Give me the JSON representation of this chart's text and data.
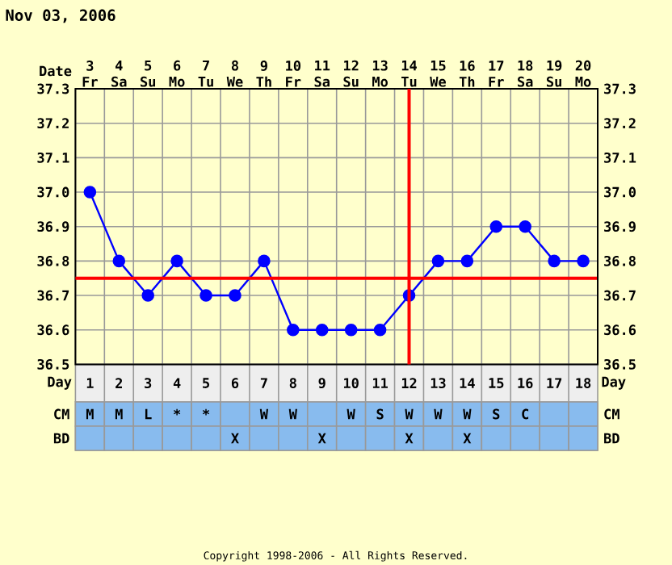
{
  "chart_data": [
    {
      "type": "line",
      "title": "Nov 03, 2006",
      "xlabel": "Day",
      "x2label": "Date",
      "categories": [
        "1",
        "2",
        "3",
        "4",
        "5",
        "6",
        "7",
        "8",
        "9",
        "10",
        "11",
        "12",
        "13",
        "14",
        "15",
        "16",
        "17",
        "18"
      ],
      "series": [
        {
          "color": "#0000ff",
          "values": [
            37.0,
            36.8,
            36.7,
            36.8,
            36.7,
            36.7,
            36.8,
            36.6,
            36.6,
            36.6,
            36.6,
            36.7,
            36.8,
            36.8,
            36.9,
            36.9,
            36.8,
            36.8
          ]
        }
      ],
      "ylim": [
        36.5,
        37.3
      ],
      "yticks": [
        36.5,
        36.6,
        36.7,
        36.8,
        36.9,
        {
          "value": 37.0,
          "label": "37.0"
        },
        37.1,
        37.2,
        37.3
      ],
      "y2lim": [
        36.5,
        37.3
      ],
      "y2ticks": [
        36.5,
        36.6,
        36.7,
        36.8,
        36.9,
        {
          "value": 37.0,
          "label": "37.0"
        },
        37.1,
        37.2,
        37.3
      ],
      "x2lim": [
        2.5,
        20.5
      ],
      "x2ticks": [
        {
          "value": 3,
          "label": "3 Fr"
        },
        {
          "value": 4,
          "label": "4 Sa"
        },
        {
          "value": 5,
          "label": "5 Su"
        },
        {
          "value": 6,
          "label": "6 Mo"
        },
        {
          "value": 7,
          "label": "7 Tu"
        },
        {
          "value": 8,
          "label": "8 We"
        },
        {
          "value": 9,
          "label": "9 Th"
        },
        {
          "value": 10,
          "label": "10 Fr"
        },
        {
          "value": 11,
          "label": "11 Sa"
        },
        {
          "value": 12,
          "label": "12 Su"
        },
        {
          "value": 13,
          "label": "13 Mo"
        },
        {
          "value": 14,
          "label": "14 Tu"
        },
        {
          "value": 15,
          "label": "15 We"
        },
        {
          "value": 16,
          "label": "16 Th"
        },
        {
          "value": 17,
          "label": "17 Fr"
        },
        {
          "value": 18,
          "label": "18 Sa"
        },
        {
          "value": 19,
          "label": "19 Su"
        },
        {
          "value": 20,
          "label": "20 Mo"
        }
      ],
      "ref_lines": [
        {
          "axis": "y",
          "value": 36.75,
          "color": "#ff0000"
        },
        {
          "axis": "x2",
          "value": 14,
          "color": "#ff0000"
        }
      ],
      "grid": true,
      "marker": "circle",
      "line_style": "solid",
      "annotations": [
        "Copyright 1998-2006 - All Rights Reserved."
      ]
    },
    {
      "type": "heatmap",
      "tick_labels": "y",
      "categories": [
        null,
        null,
        null,
        null,
        null,
        null,
        null,
        null,
        null,
        null,
        null,
        null,
        null,
        null,
        null,
        null,
        null,
        null
      ],
      "y_categories": [
        "CM",
        "BD"
      ],
      "y2_categories": [
        "CM",
        "BD"
      ],
      "cells": [
        [
          null,
          null,
          null,
          null,
          null,
          null,
          null,
          null,
          null,
          null,
          null,
          null,
          null,
          null,
          null,
          null,
          null,
          null
        ],
        [
          null,
          null,
          null,
          null,
          null,
          null,
          null,
          null,
          null,
          null,
          null,
          null,
          null,
          null,
          null,
          null,
          null,
          null
        ]
      ],
      "cell_labels": [
        [
          "M",
          "M",
          "L",
          "*",
          "*",
          null,
          "W",
          "W",
          null,
          "W",
          "S",
          "W",
          "W",
          "W",
          "S",
          "C",
          null,
          null
        ],
        [
          null,
          null,
          null,
          null,
          null,
          "X",
          null,
          null,
          "X",
          null,
          null,
          "X",
          null,
          "X",
          null,
          null,
          null,
          null
        ]
      ]
    }
  ]
}
